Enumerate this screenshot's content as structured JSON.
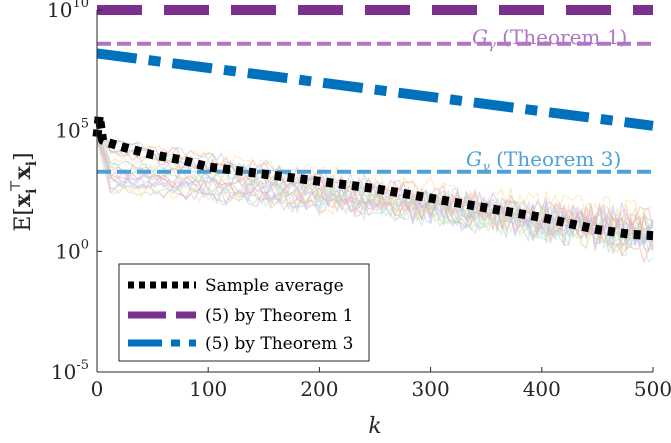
{
  "chart_data": {
    "type": "line",
    "title": "",
    "xlabel": "k",
    "ylabel_parts": {
      "prefix": "E[",
      "x": "x",
      "sub": "i",
      "sup": "⊤",
      "x2": "x",
      "sub2": "i",
      "suffix": "]"
    },
    "xlim": [
      0,
      500
    ],
    "ylim_log10": [
      -5,
      10
    ],
    "yscale": "log",
    "grid": false,
    "xticks": [
      0,
      100,
      200,
      300,
      400,
      500
    ],
    "xtick_labels": [
      "0",
      "100",
      "200",
      "300",
      "400",
      "500"
    ],
    "yticks_log10": [
      -5,
      0,
      5,
      10
    ],
    "ytick_labels": [
      {
        "base": "10",
        "exp": "-5"
      },
      {
        "base": "10",
        "exp": "0"
      },
      {
        "base": "10",
        "exp": "5"
      },
      {
        "base": "10",
        "exp": "10"
      }
    ],
    "legend_position": "bottom-left",
    "series": [
      {
        "name": "Sample average",
        "color": "#000000",
        "style": "dotted",
        "x": [
          0,
          2,
          5,
          10,
          25,
          50,
          75,
          100,
          150,
          200,
          250,
          300,
          350,
          400,
          450,
          480,
          500
        ],
        "log10_y": [
          4.75,
          5.6,
          4.6,
          4.5,
          4.3,
          4.0,
          3.8,
          3.5,
          3.2,
          2.9,
          2.6,
          2.2,
          1.8,
          1.4,
          0.9,
          0.7,
          0.65
        ]
      },
      {
        "name": "(5) by Theorem 1",
        "color": "#7b2f8e",
        "style": "dashed",
        "x": [
          0,
          500
        ],
        "log10_y": [
          10.0,
          10.0
        ]
      },
      {
        "name": "(5) by Theorem 3",
        "color": "#0072bd",
        "style": "dashdot",
        "x": [
          0,
          500
        ],
        "log10_y": [
          8.2,
          5.2
        ]
      }
    ],
    "reference_lines": [
      {
        "label": {
          "G": "G",
          "sub": "γ",
          "text": " (Theorem 1)"
        },
        "color": "#b274c4",
        "log10_y": 8.6
      },
      {
        "label": {
          "G": "G",
          "sub": "γ",
          "text": " (Theorem 3)"
        },
        "color": "#4ea0d8",
        "log10_y": 3.3
      }
    ],
    "trajectory_colors": [
      "#f4a7a7",
      "#a8d2f0",
      "#f7df9a",
      "#d6b4e6",
      "#b9e6b0"
    ]
  }
}
